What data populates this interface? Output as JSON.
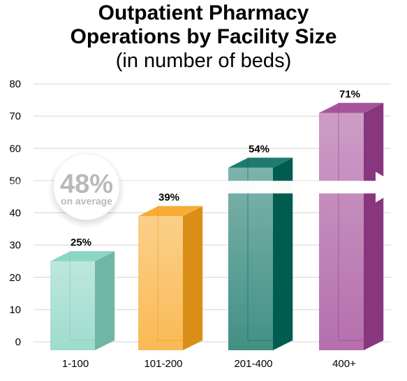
{
  "title_line1": "Outpatient Pharmacy",
  "title_line2": "Operations by Facility Size",
  "subtitle": "(in number of beds)",
  "average": {
    "value_label": "48%",
    "sub_label": "on average",
    "value": 48
  },
  "chart_data": {
    "type": "bar",
    "title": "Outpatient Pharmacy Operations by Facility Size",
    "subtitle": "(in number of beds)",
    "categories": [
      "1-100",
      "101-200",
      "201-400",
      "400+"
    ],
    "values": [
      25,
      39,
      54,
      71
    ],
    "data_labels": [
      "25%",
      "39%",
      "54%",
      "71%"
    ],
    "yticks": [
      0,
      10,
      20,
      30,
      40,
      50,
      60,
      70,
      80
    ],
    "ylim": [
      0,
      80
    ],
    "grid": true,
    "colors": [
      "#7ecfbc",
      "#f7a11a",
      "#00695a",
      "#9b3d8f"
    ],
    "average_line": 48
  }
}
